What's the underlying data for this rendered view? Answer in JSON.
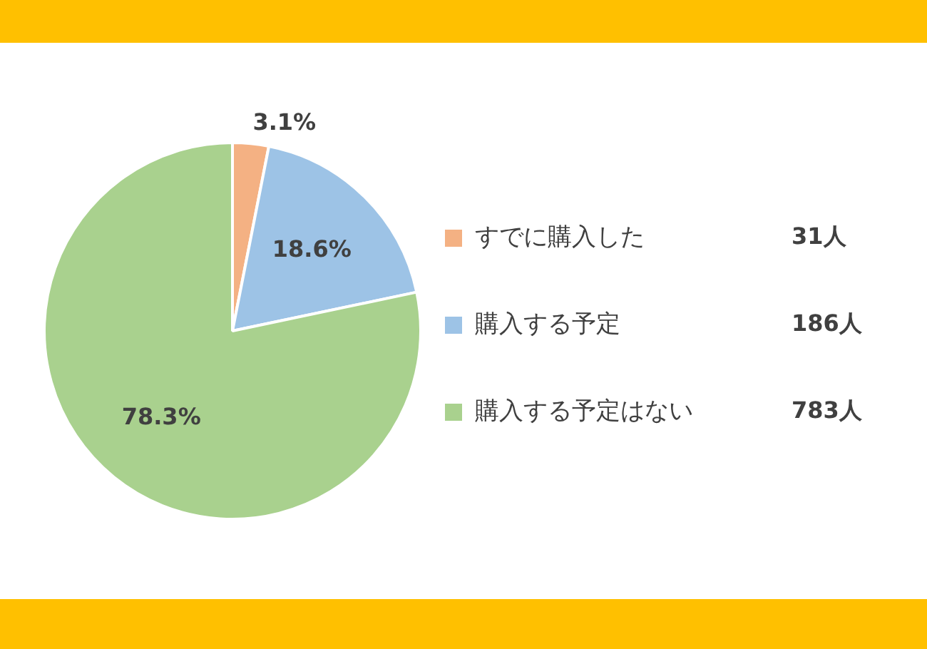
{
  "chart_data": {
    "type": "pie",
    "categories": [
      "すでに購入した",
      "購入する予定",
      "購入する予定はない"
    ],
    "values": [
      3.1,
      18.6,
      78.3
    ],
    "colors": [
      "#f4b183",
      "#9dc3e6",
      "#a9d18e"
    ],
    "value_labels": [
      "3.1%",
      "18.6%",
      "78.3%"
    ],
    "annotations": [
      "31人",
      "186人",
      "783人"
    ],
    "legend": "right"
  }
}
